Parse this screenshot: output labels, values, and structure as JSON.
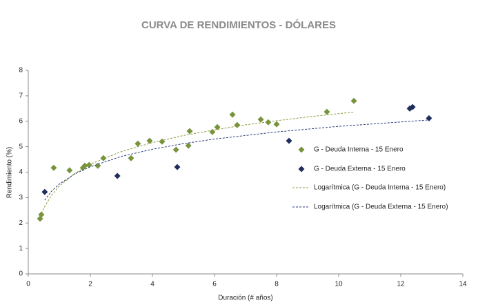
{
  "chart_data": {
    "type": "scatter",
    "title": "CURVA DE RENDIMIENTOS - DÓLARES",
    "xlabel": "Duración (# años)",
    "ylabel": "Rendimiento (%)",
    "xlim": [
      0,
      14
    ],
    "xticks": [
      0,
      2,
      4,
      6,
      8,
      10,
      12,
      14
    ],
    "ylim": [
      0,
      8
    ],
    "yticks": [
      0,
      1,
      2,
      3,
      4,
      5,
      6,
      7,
      8
    ],
    "grid": false,
    "legend": "right",
    "series": [
      {
        "name": "G - Deuda Interna - 15 Enero",
        "kind": "points",
        "color": "#77933c",
        "x": [
          0.38,
          0.42,
          0.82,
          1.33,
          1.76,
          1.82,
          1.96,
          2.24,
          2.42,
          3.31,
          3.53,
          3.91,
          4.31,
          4.76,
          5.2,
          5.16,
          5.93,
          6.09,
          6.58,
          6.73,
          7.49,
          7.73,
          8.0,
          9.62,
          10.49
        ],
        "values": [
          2.17,
          2.33,
          4.17,
          4.07,
          4.17,
          4.25,
          4.28,
          4.25,
          4.55,
          4.55,
          5.12,
          5.23,
          5.2,
          4.88,
          5.61,
          5.04,
          5.58,
          5.77,
          6.26,
          5.85,
          6.07,
          5.96,
          5.88,
          6.37,
          6.8
        ]
      },
      {
        "name": "G - Deuda Externa - 15 Enero",
        "kind": "points",
        "color": "#1f2d5c",
        "x": [
          0.53,
          2.87,
          4.8,
          8.4,
          12.29,
          12.38,
          12.91
        ],
        "values": [
          3.22,
          3.85,
          4.2,
          5.23,
          6.5,
          6.56,
          6.12
        ]
      },
      {
        "name": "Logarítmica (G - Deuda Interna - 15 Enero)",
        "kind": "trend",
        "color": "#8a9a3a",
        "x": [
          0.38,
          0.5,
          0.75,
          1,
          1.5,
          2,
          3,
          4,
          5,
          6,
          7,
          8,
          9,
          10.49
        ],
        "values": [
          2.25,
          2.59,
          3.09,
          3.45,
          3.95,
          4.31,
          4.81,
          5.16,
          5.44,
          5.66,
          5.86,
          6.02,
          6.17,
          6.36
        ]
      },
      {
        "name": "Logarítmica (G - Deuda Externa - 15 Enero)",
        "kind": "trend",
        "color": "#2a3a7a",
        "x": [
          0.53,
          0.75,
          1,
          1.5,
          2,
          3,
          4,
          5,
          6,
          8,
          10,
          12.9
        ],
        "values": [
          2.9,
          3.25,
          3.53,
          3.93,
          4.21,
          4.62,
          4.9,
          5.12,
          5.3,
          5.58,
          5.8,
          6.05
        ]
      }
    ]
  }
}
